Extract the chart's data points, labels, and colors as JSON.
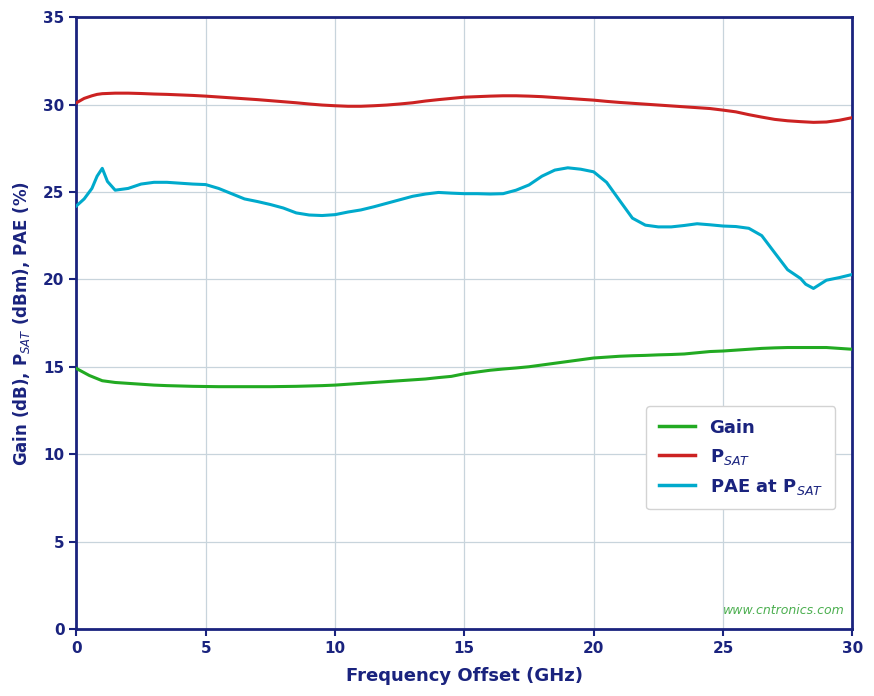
{
  "xlabel": "Frequency Offset (GHz)",
  "xlim": [
    0,
    30
  ],
  "ylim": [
    0,
    35
  ],
  "xticks": [
    0,
    5,
    10,
    15,
    20,
    25,
    30
  ],
  "yticks": [
    0,
    5,
    10,
    15,
    20,
    25,
    30,
    35
  ],
  "bg_color": "#ffffff",
  "grid_color": "#c8d4dc",
  "axis_color": "#1a237e",
  "label_color": "#1a237e",
  "tick_color": "#1a237e",
  "watermark": "www.cntronics.com",
  "watermark_color": "#4caf50",
  "gain_color": "#22aa22",
  "psat_color": "#cc2222",
  "pae_color": "#00aacc",
  "legend_text_color": "#1a237e",
  "gain_x": [
    0.0,
    0.5,
    1.0,
    1.5,
    2.0,
    2.5,
    3.0,
    3.5,
    4.0,
    4.5,
    5.0,
    5.5,
    6.0,
    6.5,
    7.0,
    7.5,
    8.0,
    8.5,
    9.0,
    9.5,
    10.0,
    10.5,
    11.0,
    11.5,
    12.0,
    12.5,
    13.0,
    13.5,
    14.0,
    14.5,
    15.0,
    15.5,
    16.0,
    16.5,
    17.0,
    17.5,
    18.0,
    18.5,
    19.0,
    19.5,
    20.0,
    20.5,
    21.0,
    21.5,
    22.0,
    22.5,
    23.0,
    23.5,
    24.0,
    24.5,
    25.0,
    25.5,
    26.0,
    26.5,
    27.0,
    27.5,
    28.0,
    28.5,
    29.0,
    29.5,
    30.0
  ],
  "gain_y": [
    14.9,
    14.5,
    14.2,
    14.1,
    14.05,
    14.0,
    13.95,
    13.92,
    13.9,
    13.88,
    13.87,
    13.86,
    13.86,
    13.86,
    13.86,
    13.86,
    13.87,
    13.88,
    13.9,
    13.92,
    13.95,
    14.0,
    14.05,
    14.1,
    14.15,
    14.2,
    14.25,
    14.3,
    14.38,
    14.45,
    14.6,
    14.7,
    14.8,
    14.87,
    14.93,
    15.0,
    15.1,
    15.2,
    15.3,
    15.4,
    15.5,
    15.55,
    15.6,
    15.63,
    15.65,
    15.68,
    15.7,
    15.73,
    15.8,
    15.87,
    15.9,
    15.95,
    16.0,
    16.05,
    16.08,
    16.1,
    16.1,
    16.1,
    16.1,
    16.05,
    16.0
  ],
  "psat_x": [
    0.0,
    0.3,
    0.6,
    0.8,
    1.0,
    1.5,
    2.0,
    2.5,
    3.0,
    3.5,
    4.0,
    4.5,
    5.0,
    5.5,
    6.0,
    6.5,
    7.0,
    7.5,
    8.0,
    8.5,
    9.0,
    9.5,
    10.0,
    10.5,
    11.0,
    11.5,
    12.0,
    12.5,
    13.0,
    13.5,
    14.0,
    14.5,
    15.0,
    15.5,
    16.0,
    16.5,
    17.0,
    17.5,
    18.0,
    18.5,
    19.0,
    19.5,
    20.0,
    20.5,
    21.0,
    21.5,
    22.0,
    22.5,
    23.0,
    23.5,
    24.0,
    24.5,
    25.0,
    25.5,
    26.0,
    26.5,
    27.0,
    27.5,
    28.0,
    28.5,
    29.0,
    29.5,
    30.0
  ],
  "psat_y": [
    30.1,
    30.35,
    30.5,
    30.58,
    30.62,
    30.65,
    30.65,
    30.63,
    30.6,
    30.58,
    30.55,
    30.52,
    30.48,
    30.43,
    30.38,
    30.33,
    30.28,
    30.22,
    30.16,
    30.1,
    30.03,
    29.97,
    29.93,
    29.9,
    29.9,
    29.93,
    29.97,
    30.03,
    30.1,
    30.2,
    30.28,
    30.35,
    30.42,
    30.45,
    30.48,
    30.5,
    30.5,
    30.48,
    30.45,
    30.4,
    30.35,
    30.3,
    30.25,
    30.18,
    30.12,
    30.07,
    30.02,
    29.97,
    29.92,
    29.87,
    29.82,
    29.77,
    29.68,
    29.58,
    29.42,
    29.28,
    29.15,
    29.07,
    29.02,
    28.98,
    29.0,
    29.1,
    29.25
  ],
  "pae_x": [
    0.0,
    0.3,
    0.6,
    0.8,
    1.0,
    1.2,
    1.5,
    2.0,
    2.5,
    3.0,
    3.5,
    4.0,
    4.5,
    5.0,
    5.5,
    6.0,
    6.5,
    7.0,
    7.5,
    8.0,
    8.5,
    9.0,
    9.5,
    10.0,
    10.5,
    11.0,
    11.5,
    12.0,
    12.5,
    13.0,
    13.5,
    14.0,
    14.5,
    15.0,
    15.5,
    16.0,
    16.5,
    17.0,
    17.5,
    18.0,
    18.5,
    19.0,
    19.5,
    20.0,
    20.5,
    21.0,
    21.5,
    22.0,
    22.5,
    23.0,
    23.5,
    24.0,
    24.5,
    25.0,
    25.5,
    26.0,
    26.5,
    27.0,
    27.5,
    28.0,
    28.2,
    28.5,
    29.0,
    29.5,
    30.0
  ],
  "pae_y": [
    24.2,
    24.6,
    25.2,
    25.9,
    26.35,
    25.6,
    25.1,
    25.2,
    25.45,
    25.55,
    25.55,
    25.5,
    25.45,
    25.42,
    25.2,
    24.9,
    24.6,
    24.45,
    24.28,
    24.08,
    23.8,
    23.68,
    23.65,
    23.7,
    23.85,
    23.97,
    24.15,
    24.35,
    24.55,
    24.75,
    24.88,
    24.97,
    24.93,
    24.9,
    24.9,
    24.88,
    24.9,
    25.1,
    25.4,
    25.9,
    26.25,
    26.38,
    26.3,
    26.15,
    25.55,
    24.52,
    23.5,
    23.1,
    23.0,
    23.0,
    23.08,
    23.18,
    23.12,
    23.05,
    23.02,
    22.92,
    22.5,
    21.52,
    20.55,
    20.05,
    19.72,
    19.48,
    19.95,
    20.1,
    20.28
  ]
}
